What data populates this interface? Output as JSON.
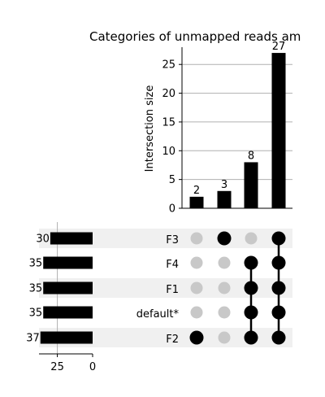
{
  "chart_data": {
    "type": "upset",
    "title": "Categories of unmapped reads am",
    "intersections": {
      "ylabel": "Intersection size",
      "values": [
        2,
        3,
        8,
        27
      ],
      "ylim": [
        0,
        28
      ],
      "yticks": [
        "0",
        "5",
        "10",
        "15",
        "20",
        "25"
      ],
      "grid": true
    },
    "sets": {
      "names": [
        "F3",
        "F4",
        "F1",
        "default*",
        "F2"
      ],
      "sizes": [
        30,
        35,
        35,
        35,
        37
      ],
      "xlim": [
        0,
        38
      ],
      "xticks": [
        "25",
        "0"
      ]
    },
    "membership": [
      [
        false,
        true,
        false,
        true
      ],
      [
        false,
        false,
        true,
        true
      ],
      [
        false,
        false,
        true,
        true
      ],
      [
        false,
        false,
        true,
        true
      ],
      [
        true,
        false,
        true,
        true
      ]
    ],
    "colors": {
      "bar": "#000000",
      "active_dot": "#000000",
      "inactive_dot": "#c8c8c8",
      "stripe": "#f0f0f0",
      "grid": "#b0b0b0"
    }
  }
}
